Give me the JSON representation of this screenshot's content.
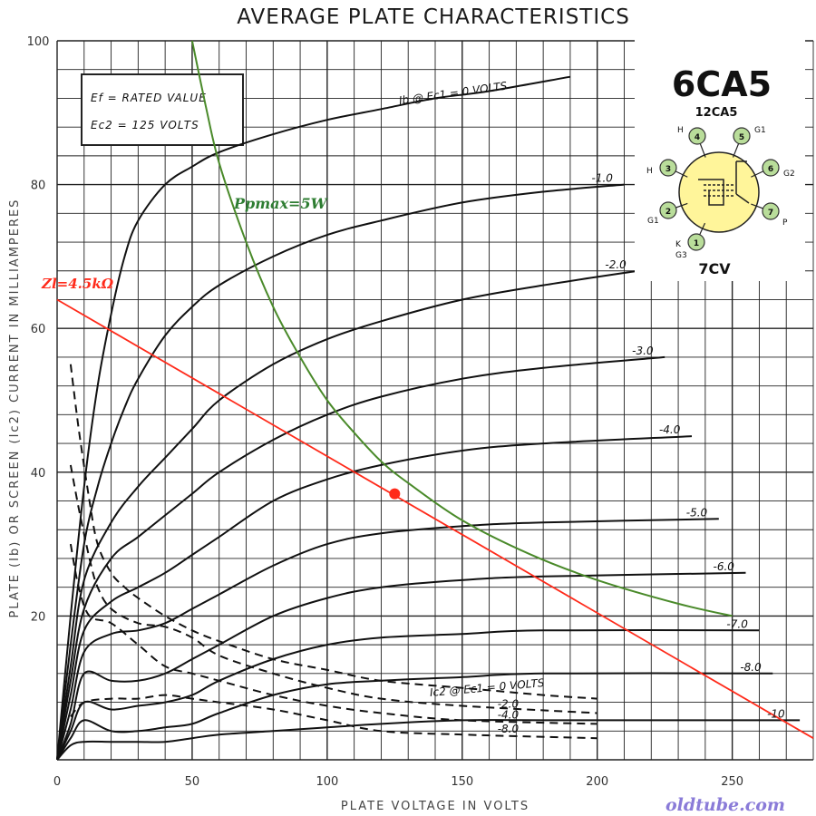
{
  "chart_data": {
    "type": "line",
    "title": "AVERAGE PLATE CHARACTERISTICS",
    "xlabel": "PLATE VOLTAGE IN VOLTS",
    "ylabel": "PLATE (Ib) OR SCREEN (Ic2) CURRENT IN MILLIAMPERES",
    "xlim": [
      0,
      280
    ],
    "ylim": [
      0,
      100
    ],
    "x_ticks": [
      "0",
      "50",
      "100",
      "150",
      "200",
      "250"
    ],
    "y_ticks": [
      "20",
      "40",
      "60",
      "80",
      "100"
    ],
    "grid": true,
    "conditions": [
      "Ef = RATED VALUE",
      "Ec2 = 125 VOLTS"
    ],
    "plate_label": "Ib @ Ec1 = 0 VOLTS",
    "screen_label": "Ic2 @ Ec1 = 0 VOLTS",
    "plate_curves": [
      {
        "label": "Ib @ Ec1 = 0 VOLTS",
        "x": [
          0,
          5,
          10,
          15,
          20,
          25,
          30,
          40,
          50,
          60,
          80,
          100,
          120,
          140,
          160,
          190
        ],
        "y": [
          0,
          20,
          38,
          52,
          62,
          70,
          75,
          80,
          82.5,
          84.5,
          87,
          89,
          90.5,
          92,
          93,
          95
        ]
      },
      {
        "label": "-1.0",
        "x": [
          0,
          5,
          10,
          15,
          20,
          25,
          30,
          40,
          50,
          60,
          80,
          100,
          120,
          150,
          180,
          210
        ],
        "y": [
          0,
          16,
          30,
          38,
          44,
          49,
          53,
          59,
          63,
          66,
          70,
          73,
          75,
          77.5,
          79,
          80
        ]
      },
      {
        "label": "-2.0",
        "x": [
          0,
          5,
          10,
          20,
          30,
          40,
          50,
          60,
          80,
          100,
          120,
          150,
          180,
          215
        ],
        "y": [
          0,
          13,
          25,
          33,
          38,
          42,
          46,
          50,
          55,
          58.5,
          61,
          64,
          66,
          68
        ]
      },
      {
        "label": "-3.0",
        "x": [
          0,
          5,
          10,
          20,
          30,
          40,
          50,
          60,
          80,
          100,
          120,
          150,
          180,
          225
        ],
        "y": [
          0,
          11,
          21,
          28,
          31,
          34,
          37,
          40,
          44.5,
          48,
          50.5,
          53,
          54.5,
          56
        ]
      },
      {
        "label": "-4.0",
        "x": [
          0,
          5,
          10,
          20,
          30,
          40,
          50,
          60,
          80,
          100,
          120,
          150,
          180,
          235
        ],
        "y": [
          0,
          9,
          18,
          22,
          24,
          26,
          28.5,
          31,
          36,
          39,
          41,
          43,
          44,
          45
        ]
      },
      {
        "label": "-5.0",
        "x": [
          0,
          5,
          10,
          20,
          30,
          40,
          50,
          60,
          80,
          100,
          120,
          150,
          180,
          245
        ],
        "y": [
          0,
          7,
          15,
          17.5,
          18,
          19,
          21,
          23,
          27,
          30,
          31.5,
          32.5,
          33,
          33.5
        ]
      },
      {
        "label": "-6.0",
        "x": [
          0,
          5,
          10,
          20,
          30,
          40,
          50,
          60,
          80,
          100,
          120,
          150,
          180,
          255
        ],
        "y": [
          0,
          5,
          12,
          11,
          11,
          12,
          14,
          16,
          20,
          22.5,
          24,
          25,
          25.5,
          26
        ]
      },
      {
        "label": "-7.0",
        "x": [
          0,
          5,
          10,
          20,
          30,
          40,
          50,
          60,
          80,
          100,
          120,
          150,
          180,
          260
        ],
        "y": [
          0,
          4,
          8,
          7,
          7.5,
          8,
          9,
          11,
          14,
          16,
          17,
          17.5,
          18,
          18
        ]
      },
      {
        "label": "-8.0",
        "x": [
          0,
          5,
          10,
          20,
          30,
          40,
          50,
          60,
          80,
          100,
          120,
          150,
          180,
          265
        ],
        "y": [
          0,
          3,
          5.5,
          4,
          4,
          4.5,
          5,
          6.5,
          9,
          10.5,
          11,
          11.5,
          12,
          12
        ]
      },
      {
        "label": "-10",
        "x": [
          0,
          5,
          10,
          20,
          30,
          40,
          50,
          60,
          80,
          100,
          120,
          150,
          180,
          275
        ],
        "y": [
          0,
          2,
          2.5,
          2.5,
          2.5,
          2.5,
          3,
          3.5,
          4,
          4.5,
          5,
          5.5,
          5.5,
          5.5
        ]
      }
    ],
    "screen_curves": [
      {
        "label": "Ic2 @ Ec1 = 0 VOLTS",
        "x": [
          5,
          8,
          12,
          15,
          20,
          25,
          30,
          40,
          50,
          60,
          80,
          100,
          120,
          150,
          180,
          200
        ],
        "y": [
          55,
          46,
          36,
          30,
          26,
          24,
          22.5,
          20,
          18,
          16.5,
          14,
          12.5,
          11,
          10,
          9,
          8.5
        ]
      },
      {
        "label": "-2.0",
        "x": [
          5,
          8,
          12,
          15,
          20,
          30,
          40,
          50,
          60,
          80,
          100,
          120,
          150,
          200
        ],
        "y": [
          41,
          35,
          28,
          24,
          21,
          19,
          18.5,
          17,
          14.5,
          12,
          10,
          8.5,
          7.5,
          6.5
        ]
      },
      {
        "label": "-4.0",
        "x": [
          5,
          8,
          12,
          20,
          30,
          40,
          50,
          60,
          80,
          100,
          120,
          150,
          200
        ],
        "y": [
          30,
          24,
          20,
          19,
          16,
          13,
          12,
          11,
          9,
          7.5,
          6.5,
          5.5,
          5
        ]
      },
      {
        "label": "-8.0",
        "x": [
          5,
          10,
          20,
          30,
          40,
          50,
          60,
          80,
          100,
          120,
          150,
          200
        ],
        "y": [
          6,
          8,
          8.5,
          8.5,
          9,
          8.5,
          8,
          7,
          5.5,
          4,
          3.5,
          3
        ]
      }
    ],
    "ppmax_curve": {
      "label": "Ppmax=5W",
      "x": [
        50,
        55,
        60,
        70,
        80,
        90,
        100,
        110,
        120,
        130,
        150,
        175,
        200,
        230,
        250
      ],
      "y": [
        100,
        91,
        83,
        72,
        63,
        56,
        50,
        45.5,
        41.5,
        38.5,
        33.3,
        28.6,
        25,
        21.7,
        20
      ]
    },
    "load_line": {
      "label": "Zl=4.5kΩ",
      "x": [
        0,
        280
      ],
      "y": [
        64,
        3
      ]
    },
    "operating_point": {
      "x": 125,
      "y": 37
    }
  },
  "tube": {
    "name": "6CA5",
    "alt_name": "12CA5",
    "base": "7CV",
    "pins": [
      {
        "num": "1",
        "labels": [
          "K",
          "G3"
        ]
      },
      {
        "num": "2",
        "labels": [
          "G1"
        ]
      },
      {
        "num": "3",
        "labels": [
          "H"
        ]
      },
      {
        "num": "4",
        "labels": [
          "H"
        ]
      },
      {
        "num": "5",
        "labels": [
          "G1"
        ]
      },
      {
        "num": "6",
        "labels": [
          "G2"
        ]
      },
      {
        "num": "7",
        "labels": [
          "P"
        ]
      }
    ]
  },
  "watermark": "oldtube.com",
  "colors": {
    "grid": "#222222",
    "curve": "#111111",
    "ppmax": "#4a8a2a",
    "load": "#ff2a1a",
    "pin_fill": "#b9dd9a",
    "envelope": "#fff59a"
  }
}
